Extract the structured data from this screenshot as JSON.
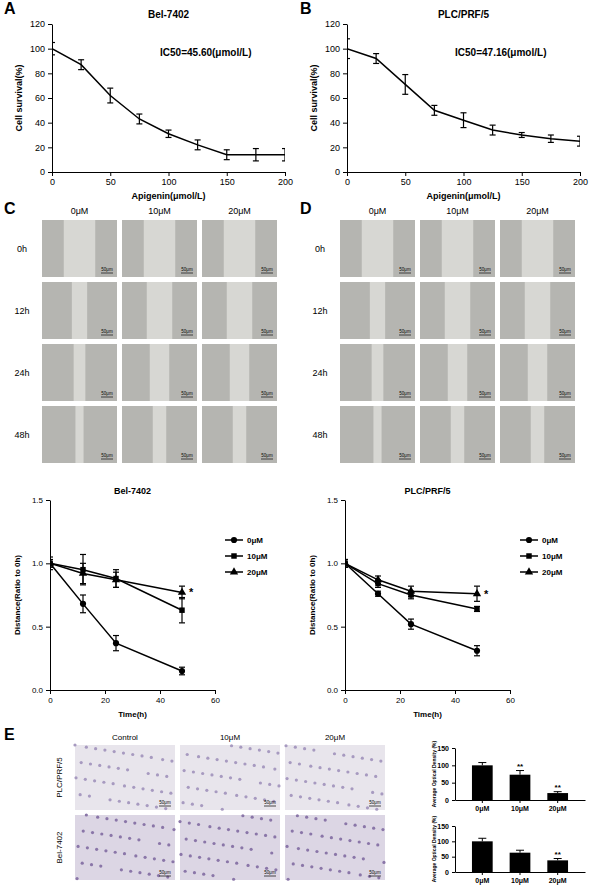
{
  "panel_labels": [
    "A",
    "B",
    "C",
    "D",
    "E"
  ],
  "image_panels": [
    {
      "columns": [
        "0μM",
        "10μM",
        "20μM"
      ],
      "rows": [
        "0h",
        "12h",
        "24h",
        "48h"
      ],
      "scale_bar": "50μm"
    },
    {
      "columns": [
        "0μM",
        "10μM",
        "20μM"
      ],
      "rows": [
        "0h",
        "12h",
        "24h",
        "48h"
      ],
      "scale_bar": "50μm"
    },
    {
      "columns": [
        "Control",
        "10μM",
        "20μM"
      ],
      "rows": [
        "PLC/PRF/5",
        "Bel-7402"
      ],
      "scale_bar": "50μm"
    }
  ],
  "chart_data": [
    {
      "type": "line",
      "title": "Bel-7402",
      "annotations": [
        "IC50=45.60(μmol/L)"
      ],
      "x_label": "Apigenin(μmol/L)",
      "y_label": "Cell survival(%)",
      "x": [
        0,
        25,
        50,
        75,
        100,
        125,
        150,
        175,
        200
      ],
      "values": [
        100,
        87,
        62,
        43,
        31,
        22,
        14,
        14,
        14
      ],
      "errors": [
        5,
        4,
        6,
        4,
        3,
        4,
        4,
        5,
        5
      ],
      "color": "#000000",
      "xlim": [
        0,
        200
      ],
      "xticks": [
        0,
        50,
        100,
        150,
        200
      ],
      "ylim": [
        0,
        120
      ],
      "yticks": [
        0,
        20,
        40,
        60,
        80,
        100,
        120
      ]
    },
    {
      "type": "line",
      "title": "PLC/PRF/5",
      "annotations": [
        "IC50=47.16(μmol/L)"
      ],
      "x_label": "Apigenin(μmol/L)",
      "y_label": "Cell survival(%)",
      "x": [
        0,
        25,
        50,
        75,
        100,
        125,
        150,
        175,
        200
      ],
      "values": [
        100,
        92,
        71,
        50,
        42,
        34,
        30,
        27,
        25
      ],
      "errors": [
        8,
        4,
        8,
        4,
        6,
        4,
        2,
        3,
        4
      ],
      "color": "#000000",
      "xlim": [
        0,
        200
      ],
      "xticks": [
        0,
        50,
        100,
        150,
        200
      ],
      "ylim": [
        0,
        120
      ],
      "yticks": [
        0,
        20,
        40,
        60,
        80,
        100,
        120
      ]
    },
    {
      "type": "line",
      "title": "Bel-7402",
      "annotations": [
        "*"
      ],
      "x_label": "Time(h)",
      "y_label": "Distance(Ratio to 0h)",
      "x": [
        0,
        12,
        24,
        48
      ],
      "series": [
        {
          "name": "0μM",
          "marker": "circle",
          "values": [
            1.0,
            0.68,
            0.37,
            0.15
          ],
          "errors": [
            0.05,
            0.07,
            0.06,
            0.03
          ]
        },
        {
          "name": "10μM",
          "marker": "square",
          "values": [
            1.0,
            0.95,
            0.88,
            0.63
          ],
          "errors": [
            0.03,
            0.12,
            0.07,
            0.1
          ]
        },
        {
          "name": "20μM",
          "marker": "triangle",
          "values": [
            1.0,
            0.92,
            0.87,
            0.77
          ],
          "errors": [
            0.03,
            0.08,
            0.06,
            0.05
          ]
        }
      ],
      "color": "#000000",
      "legend": "right",
      "xlim": [
        0,
        60
      ],
      "xticks": [
        0,
        20,
        40,
        60
      ],
      "ylim": [
        0,
        1.5
      ],
      "yticks": [
        {
          "value": 0,
          "label": "0.0"
        },
        {
          "value": 0.5,
          "label": "0.5"
        },
        {
          "value": 1,
          "label": "1.0"
        },
        {
          "value": 1.5,
          "label": "1.5"
        }
      ]
    },
    {
      "type": "line",
      "title": "PLC/PRF/5",
      "annotations": [
        "*"
      ],
      "x_label": "Time(h)",
      "y_label": "Distance(Ratio to 0h)",
      "x": [
        0,
        12,
        24,
        48
      ],
      "series": [
        {
          "name": "0μM",
          "marker": "circle",
          "values": [
            1.0,
            0.76,
            0.52,
            0.31
          ],
          "errors": [
            0.03,
            0.02,
            0.04,
            0.04
          ]
        },
        {
          "name": "10μM",
          "marker": "square",
          "values": [
            1.0,
            0.84,
            0.75,
            0.64
          ],
          "errors": [
            0.03,
            0.03,
            0.03,
            0.02
          ]
        },
        {
          "name": "20μM",
          "marker": "triangle",
          "values": [
            1.0,
            0.87,
            0.78,
            0.76
          ],
          "errors": [
            0.03,
            0.03,
            0.04,
            0.06
          ]
        }
      ],
      "color": "#000000",
      "legend": "right",
      "xlim": [
        0,
        60
      ],
      "xticks": [
        0,
        20,
        40,
        60
      ],
      "ylim": [
        0,
        1.5
      ],
      "yticks": [
        {
          "value": 0,
          "label": "0.0"
        },
        {
          "value": 0.5,
          "label": "0.5"
        },
        {
          "value": 1,
          "label": "1.0"
        },
        {
          "value": 1.5,
          "label": "1.5"
        }
      ]
    },
    {
      "type": "bar",
      "y_label": "Average Optical Density (%)",
      "categories": [
        "0μM",
        "10μM",
        "20μM"
      ],
      "values": [
        100,
        73,
        20
      ],
      "errors": [
        8,
        12,
        4
      ],
      "significance": [
        null,
        "**",
        "**"
      ],
      "color": "#000000",
      "ylim": [
        0,
        150
      ],
      "yticks": [
        0,
        50,
        100,
        150
      ]
    },
    {
      "type": "bar",
      "y_label": "Average Optical Density (%)",
      "categories": [
        "0μM",
        "10μM",
        "20μM"
      ],
      "values": [
        100,
        63,
        38
      ],
      "errors": [
        10,
        8,
        6
      ],
      "significance": [
        null,
        null,
        "**"
      ],
      "color": "#000000",
      "ylim": [
        0,
        150
      ],
      "yticks": [
        0,
        50,
        100,
        150
      ]
    }
  ]
}
